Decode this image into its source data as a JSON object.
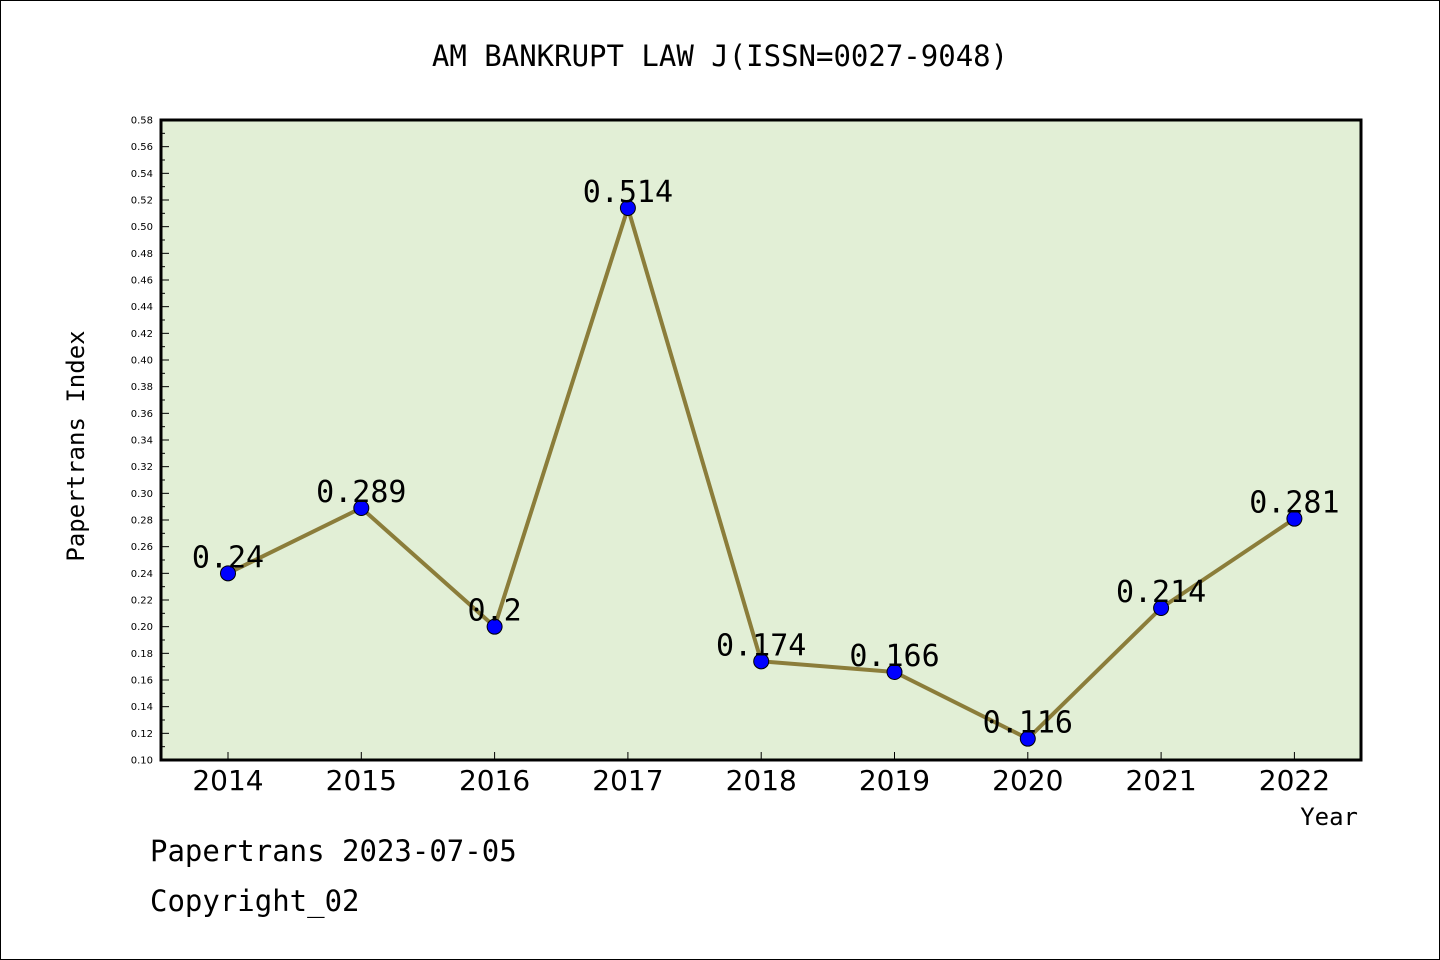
{
  "chart_data": {
    "type": "line",
    "title": "AM BANKRUPT LAW J(ISSN=0027-9048)",
    "xlabel": "Year",
    "ylabel": "Papertrans Index",
    "categories": [
      "2014",
      "2015",
      "2016",
      "2017",
      "2018",
      "2019",
      "2020",
      "2021",
      "2022"
    ],
    "series": [
      {
        "values": [
          0.24,
          0.289,
          0.2,
          0.514,
          0.174,
          0.166,
          0.116,
          0.214,
          0.281
        ]
      }
    ],
    "data_labels": [
      "0.24",
      "0.289",
      "0.2",
      "0.514",
      "0.174",
      "0.166",
      "0.116",
      "0.214",
      "0.281"
    ],
    "ylim": [
      0.1,
      0.58
    ],
    "yticks": [
      "0.10",
      "0.12",
      "0.14",
      "0.16",
      "0.18",
      "0.20",
      "0.22",
      "0.24",
      "0.26",
      "0.28",
      "0.30",
      "0.32",
      "0.34",
      "0.36",
      "0.38",
      "0.40",
      "0.42",
      "0.44",
      "0.46",
      "0.48",
      "0.50",
      "0.52",
      "0.54",
      "0.56",
      "0.58"
    ],
    "grid": false,
    "colors": {
      "plot_background": "#e2efd6",
      "line": "#8b7d3a",
      "marker": "#0000ff"
    }
  },
  "footer": {
    "line1": "Papertrans 2023-07-05",
    "line2": "Copyright_02"
  }
}
